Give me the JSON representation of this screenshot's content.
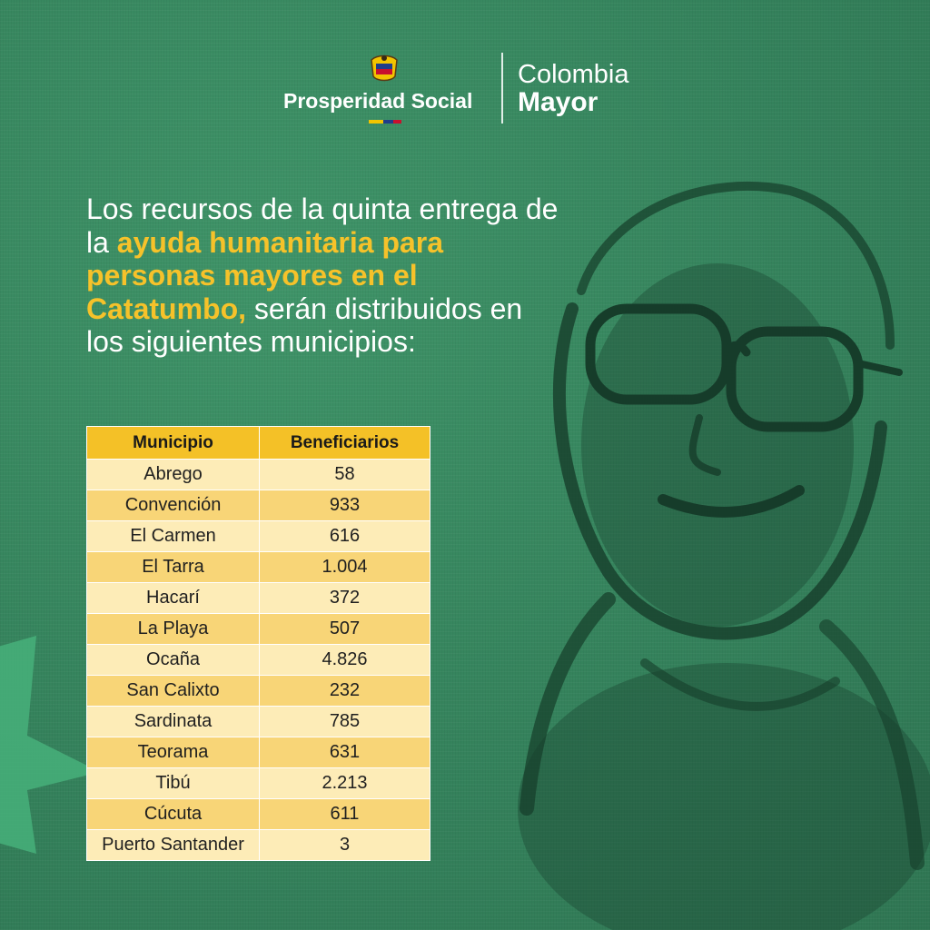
{
  "header": {
    "left_logo_text": "Prosperidad Social",
    "right_logo_line1": "Colombia",
    "right_logo_line2": "Mayor"
  },
  "headline": {
    "part1": "Los recursos de la quinta entrega de la ",
    "highlight": "ayuda humanitaria para personas mayores en el Catatumbo,",
    "part2": " serán distribuidos en los siguientes municipios:"
  },
  "table": {
    "headers": [
      "Municipio",
      "Beneficiarios"
    ],
    "rows": [
      [
        "Abrego",
        "58"
      ],
      [
        "Convención",
        "933"
      ],
      [
        "El Carmen",
        "616"
      ],
      [
        "El Tarra",
        "1.004"
      ],
      [
        "Hacarí",
        "372"
      ],
      [
        "La Playa",
        "507"
      ],
      [
        "Ocaña",
        "4.826"
      ],
      [
        "San Calixto",
        "232"
      ],
      [
        "Sardinata",
        "785"
      ],
      [
        "Teorama",
        "631"
      ],
      [
        "Tibú",
        "2.213"
      ],
      [
        "Cúcuta",
        "611"
      ],
      [
        "Puerto Santander",
        "3"
      ]
    ]
  },
  "colors": {
    "background": "#3a8a62",
    "highlight": "#f6c22a",
    "table_header": "#f4c127",
    "row_light": "#fdecb7",
    "row_dark": "#f8d577"
  },
  "icons": {
    "coat_of_arms": "coat-of-arms-icon",
    "decorative_star": "star-shape-icon",
    "portrait": "elderly-woman-portrait"
  }
}
